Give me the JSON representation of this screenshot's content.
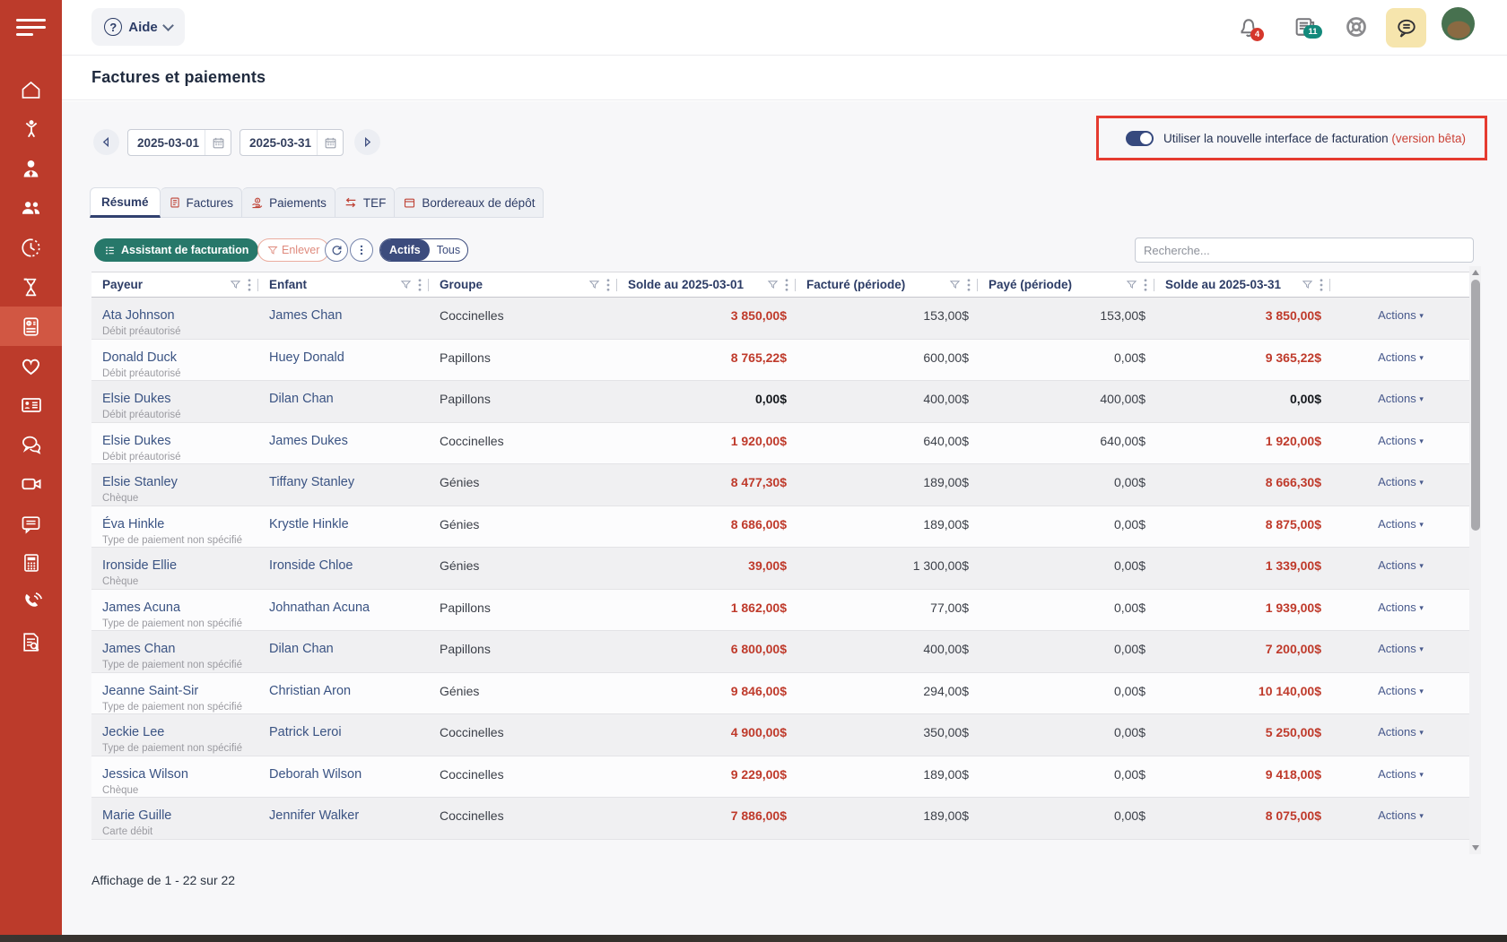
{
  "sidebar": {
    "items": [
      {
        "icon": "home-icon",
        "name": "home"
      },
      {
        "icon": "child-icon",
        "name": "children"
      },
      {
        "icon": "parent-icon",
        "name": "parents"
      },
      {
        "icon": "group-icon",
        "name": "groups"
      },
      {
        "icon": "clock-icon",
        "name": "attendance"
      },
      {
        "icon": "hourglass-icon",
        "name": "waiting-list"
      },
      {
        "icon": "billing-icon",
        "name": "billing",
        "active": true
      },
      {
        "icon": "heart-icon",
        "name": "health"
      },
      {
        "icon": "id-card-icon",
        "name": "registration"
      },
      {
        "icon": "chat-bubbles-icon",
        "name": "communication"
      },
      {
        "icon": "video-icon",
        "name": "video"
      },
      {
        "icon": "message-icon",
        "name": "messages"
      },
      {
        "icon": "keypad-icon",
        "name": "terminal"
      },
      {
        "icon": "phone-icon",
        "name": "calls"
      },
      {
        "icon": "report-search-icon",
        "name": "reports"
      }
    ]
  },
  "topbar": {
    "help_label": "Aide",
    "notification_count": "4",
    "report_count": "11"
  },
  "page": {
    "title": "Factures et paiements",
    "footer": "Affichage de 1 - 22 sur 22"
  },
  "date_range": {
    "start": "2025-03-01",
    "end": "2025-03-31"
  },
  "beta_banner": {
    "label": "Utiliser la nouvelle interface de facturation",
    "badge": "(version bêta)"
  },
  "tabs": [
    {
      "label": "Résumé",
      "active": true
    },
    {
      "label": "Factures",
      "icon": "invoice-icon"
    },
    {
      "label": "Paiements",
      "icon": "payment-icon"
    },
    {
      "label": "TEF",
      "icon": "transfer-icon"
    },
    {
      "label": "Bordereaux de dépôt",
      "icon": "deposit-icon"
    }
  ],
  "toolbar": {
    "assistant": "Assistant de facturation",
    "remove": "Enlever",
    "filter_options": [
      "Actifs",
      "Tous"
    ],
    "filter_selected": "Actifs",
    "search_placeholder": "Recherche..."
  },
  "table": {
    "columns": [
      "Payeur",
      "Enfant",
      "Groupe",
      "Solde au 2025-03-01",
      "Facturé (période)",
      "Payé (période)",
      "Solde au 2025-03-31"
    ],
    "actions_label": "Actions",
    "rows": [
      {
        "payer": "Ata Johnson",
        "payment_type": "Débit préautorisé",
        "child": "James Chan",
        "group": "Coccinelles",
        "opening_balance": "3 850,00$",
        "invoiced": "153,00$",
        "paid": "153,00$",
        "closing_balance": "3 850,00$"
      },
      {
        "payer": "Donald Duck",
        "payment_type": "Débit préautorisé",
        "child": "Huey Donald",
        "group": "Papillons",
        "opening_balance": "8 765,22$",
        "invoiced": "600,00$",
        "paid": "0,00$",
        "closing_balance": "9 365,22$"
      },
      {
        "payer": "Elsie Dukes",
        "payment_type": "Débit préautorisé",
        "child": "Dilan Chan",
        "group": "Papillons",
        "opening_balance": "0,00$",
        "invoiced": "400,00$",
        "paid": "400,00$",
        "closing_balance": "0,00$"
      },
      {
        "payer": "Elsie Dukes",
        "payment_type": "Débit préautorisé",
        "child": "James Dukes",
        "group": "Coccinelles",
        "opening_balance": "1 920,00$",
        "invoiced": "640,00$",
        "paid": "640,00$",
        "closing_balance": "1 920,00$"
      },
      {
        "payer": "Elsie Stanley",
        "payment_type": "Chèque",
        "child": "Tiffany Stanley",
        "group": "Génies",
        "opening_balance": "8 477,30$",
        "invoiced": "189,00$",
        "paid": "0,00$",
        "closing_balance": "8 666,30$"
      },
      {
        "payer": "Éva Hinkle",
        "payment_type": "Type de paiement non spécifié",
        "child": "Krystle Hinkle",
        "group": "Génies",
        "opening_balance": "8 686,00$",
        "invoiced": "189,00$",
        "paid": "0,00$",
        "closing_balance": "8 875,00$"
      },
      {
        "payer": "Ironside Ellie",
        "payment_type": "Chèque",
        "child": "Ironside Chloe",
        "group": "Génies",
        "opening_balance": "39,00$",
        "invoiced": "1 300,00$",
        "paid": "0,00$",
        "closing_balance": "1 339,00$"
      },
      {
        "payer": "James Acuna",
        "payment_type": "Type de paiement non spécifié",
        "child": "Johnathan Acuna",
        "group": "Papillons",
        "opening_balance": "1 862,00$",
        "invoiced": "77,00$",
        "paid": "0,00$",
        "closing_balance": "1 939,00$"
      },
      {
        "payer": "James Chan",
        "payment_type": "Type de paiement non spécifié",
        "child": "Dilan Chan",
        "group": "Papillons",
        "opening_balance": "6 800,00$",
        "invoiced": "400,00$",
        "paid": "0,00$",
        "closing_balance": "7 200,00$"
      },
      {
        "payer": "Jeanne Saint-Sir",
        "payment_type": "Type de paiement non spécifié",
        "child": "Christian Aron",
        "group": "Génies",
        "opening_balance": "9 846,00$",
        "invoiced": "294,00$",
        "paid": "0,00$",
        "closing_balance": "10 140,00$"
      },
      {
        "payer": "Jeckie Lee",
        "payment_type": "Type de paiement non spécifié",
        "child": "Patrick Leroi",
        "group": "Coccinelles",
        "opening_balance": "4 900,00$",
        "invoiced": "350,00$",
        "paid": "0,00$",
        "closing_balance": "5 250,00$"
      },
      {
        "payer": "Jessica Wilson",
        "payment_type": "Chèque",
        "child": "Deborah Wilson",
        "group": "Coccinelles",
        "opening_balance": "9 229,00$",
        "invoiced": "189,00$",
        "paid": "0,00$",
        "closing_balance": "9 418,00$"
      },
      {
        "payer": "Marie Guille",
        "payment_type": "Carte débit",
        "child": "Jennifer Walker",
        "group": "Coccinelles",
        "opening_balance": "7 886,00$",
        "invoiced": "189,00$",
        "paid": "0,00$",
        "closing_balance": "8 075,00$"
      }
    ]
  }
}
